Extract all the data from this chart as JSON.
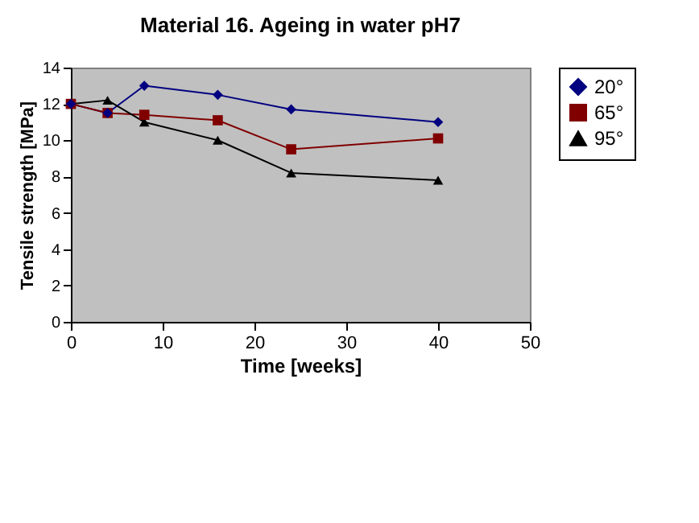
{
  "chart_data": {
    "type": "line",
    "title": "Material 16. Ageing in water pH7",
    "xlabel": "Time [weeks]",
    "ylabel": "Tensile strength [MPa]",
    "x": [
      0,
      4,
      8,
      16,
      24,
      40
    ],
    "series": [
      {
        "name": "20°",
        "color": "#000080",
        "marker": "diamond",
        "values": [
          12,
          11.5,
          13,
          12.5,
          11.7,
          11
        ]
      },
      {
        "name": "65°",
        "color": "#800000",
        "marker": "square",
        "values": [
          12,
          11.5,
          11.4,
          11.1,
          9.5,
          10.1
        ]
      },
      {
        "name": "95°",
        "color": "#000000",
        "marker": "triangle",
        "values": [
          12,
          12.2,
          11,
          10,
          8.2,
          7.8
        ]
      }
    ],
    "xlim": [
      0,
      50
    ],
    "xticks": [
      0,
      10,
      20,
      30,
      40,
      50
    ],
    "ylim": [
      0,
      14
    ],
    "yticks": [
      0,
      2,
      4,
      6,
      8,
      10,
      12,
      14
    ],
    "grid": false,
    "legend": "right"
  }
}
